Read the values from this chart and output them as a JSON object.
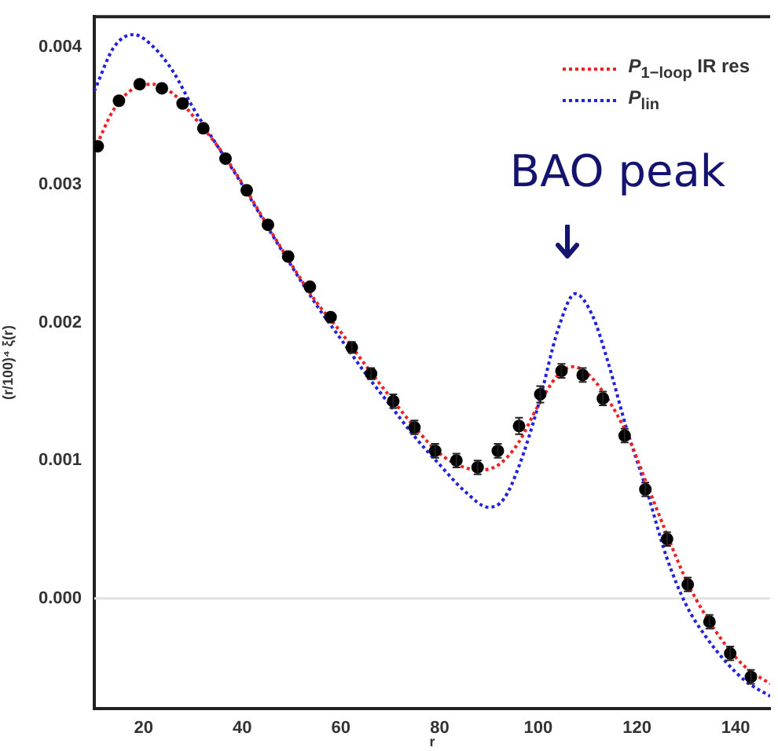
{
  "chart_data": {
    "type": "line",
    "xlabel": "r",
    "ylabel": "(r/100)⁴ ξ(r)",
    "xlim": [
      10,
      147
    ],
    "xticks": [
      20,
      40,
      60,
      80,
      100,
      120,
      140
    ],
    "ylim": [
      -0.0008,
      0.00422
    ],
    "yticks": [
      {
        "value": 0,
        "label": "0.000"
      },
      {
        "value": 0.001,
        "label": "0.001"
      },
      {
        "value": 0.002,
        "label": "0.002"
      },
      {
        "value": 0.003,
        "label": "0.003"
      },
      {
        "value": 0.004,
        "label": "0.004"
      }
    ],
    "grid": false,
    "legend": "top right",
    "ref_lines": [
      {
        "axis": "y",
        "value": 0,
        "color": "#e3e3e3",
        "line_style": "solid"
      }
    ],
    "annotations": [
      "BAO peak"
    ],
    "series": [
      {
        "name": "P$_{1−loop}$ IR res",
        "color": "#ee2222",
        "line_style": "dotted",
        "marker": "none",
        "x": [
          10,
          14,
          18,
          22,
          26,
          30,
          35,
          40,
          45,
          50,
          55,
          60,
          65,
          70,
          75,
          80,
          85,
          88,
          92,
          96,
          100,
          104,
          107,
          110,
          114,
          118,
          122,
          126,
          130,
          134,
          138,
          142,
          147
        ],
        "values": [
          0.00325,
          0.00355,
          0.0037,
          0.00373,
          0.00366,
          0.0035,
          0.00328,
          0.00301,
          0.00271,
          0.00242,
          0.00215,
          0.00193,
          0.00169,
          0.00146,
          0.00124,
          0.00105,
          0.00095,
          0.00093,
          0.00097,
          0.00113,
          0.0014,
          0.00162,
          0.00168,
          0.00163,
          0.00145,
          0.00119,
          0.00083,
          0.00047,
          0.00013,
          -0.00013,
          -0.00034,
          -0.0005,
          -0.00062
        ]
      },
      {
        "name": "P$_{lin}$",
        "color": "#2222dd",
        "line_style": "dotted",
        "marker": "none",
        "x": [
          10,
          14,
          18,
          22,
          26,
          30,
          35,
          40,
          45,
          50,
          55,
          60,
          65,
          70,
          75,
          80,
          85,
          90,
          93,
          96,
          100,
          104,
          107.5,
          111,
          114,
          118,
          122,
          126,
          130,
          134,
          138,
          142,
          147
        ],
        "values": [
          0.00368,
          0.004,
          0.00409,
          0.004,
          0.00382,
          0.00356,
          0.00328,
          0.003,
          0.0027,
          0.00241,
          0.00213,
          0.00188,
          0.00163,
          0.0014,
          0.00117,
          0.00097,
          0.00078,
          0.00066,
          0.00072,
          0.00095,
          0.0014,
          0.00195,
          0.00221,
          0.00205,
          0.00173,
          0.00122,
          0.00078,
          0.0003,
          -5e-05,
          -0.00028,
          -0.00046,
          -0.0006,
          -0.00071
        ]
      },
      {
        "type": "scatter",
        "color": "#000000",
        "marker": "circle",
        "x": [
          10.7,
          15,
          19.2,
          23.7,
          27.9,
          32.1,
          36.6,
          40.9,
          45.2,
          49.3,
          53.7,
          57.9,
          62.2,
          66.1,
          70.6,
          74.9,
          79.1,
          83.4,
          87.7,
          91.8,
          96.1,
          100.4,
          104.7,
          109,
          113.1,
          117.5,
          121.7,
          126.1,
          130.3,
          134.7,
          138.9,
          143.1
        ],
        "values": [
          0.00328,
          0.00361,
          0.00373,
          0.0037,
          0.00359,
          0.00341,
          0.00319,
          0.00296,
          0.00271,
          0.00248,
          0.00226,
          0.00204,
          0.00182,
          0.00163,
          0.00143,
          0.00124,
          0.00107,
          0.001,
          0.00095,
          0.00107,
          0.00125,
          0.00148,
          0.00165,
          0.00162,
          0.00145,
          0.00118,
          0.00079,
          0.00043,
          0.0001,
          -0.00017,
          -0.0004,
          -0.00057
        ],
        "errors": [
          null,
          null,
          null,
          null,
          null,
          null,
          null,
          null,
          null,
          null,
          null,
          null,
          4e-05,
          4e-05,
          5e-05,
          5e-05,
          5e-05,
          5e-05,
          5e-05,
          5e-05,
          6e-05,
          6e-05,
          5e-05,
          5e-05,
          5e-05,
          5e-05,
          5e-05,
          5e-05,
          5e-05,
          5e-05,
          5e-05,
          5e-05
        ]
      }
    ]
  }
}
